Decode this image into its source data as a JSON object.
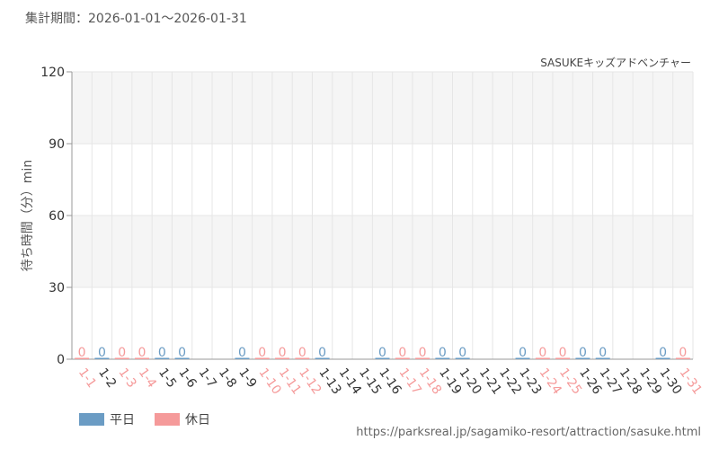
{
  "header": {
    "period_text": "集計期間：2026-01-01～2026-01-31"
  },
  "chart_data": {
    "type": "bar",
    "title": "SASUKEキッズアドベンチャー",
    "ylabel": "待ち時間（分）min",
    "xlabel": "",
    "ylim": [
      0,
      120
    ],
    "yticks": [
      0,
      30,
      60,
      90,
      120
    ],
    "grid": true,
    "categories": [
      "1-1",
      "1-2",
      "1-3",
      "1-4",
      "1-5",
      "1-6",
      "1-7",
      "1-8",
      "1-9",
      "1-10",
      "1-11",
      "1-12",
      "1-13",
      "1-14",
      "1-15",
      "1-16",
      "1-17",
      "1-18",
      "1-19",
      "1-20",
      "1-21",
      "1-22",
      "1-23",
      "1-24",
      "1-25",
      "1-26",
      "1-27",
      "1-28",
      "1-29",
      "1-30",
      "1-31"
    ],
    "day_type": [
      "holiday",
      "weekday",
      "holiday",
      "holiday",
      "weekday",
      "weekday",
      "",
      "",
      "weekday",
      "holiday",
      "holiday",
      "holiday",
      "weekday",
      "",
      "",
      "weekday",
      "holiday",
      "holiday",
      "weekday",
      "weekday",
      "",
      "",
      "weekday",
      "holiday",
      "holiday",
      "weekday",
      "weekday",
      "",
      "",
      "weekday",
      "holiday"
    ],
    "values": [
      0,
      0,
      0,
      0,
      0,
      0,
      null,
      null,
      0,
      0,
      0,
      0,
      0,
      null,
      null,
      0,
      0,
      0,
      0,
      0,
      null,
      null,
      0,
      0,
      0,
      0,
      0,
      null,
      null,
      0,
      0
    ],
    "series": [
      {
        "name": "平日",
        "key": "weekday",
        "color": "#6b9cc4"
      },
      {
        "name": "休日",
        "key": "holiday",
        "color": "#f59a9a"
      }
    ],
    "colors": {
      "label_default": "#333333",
      "grid": "#e6e6e6",
      "band": "#f5f5f5",
      "axis": "#999999"
    },
    "legend_position": "bottom-left"
  },
  "footer": {
    "source_url": "https://parksreal.jp/sagamiko-resort/attraction/sasuke.html"
  }
}
